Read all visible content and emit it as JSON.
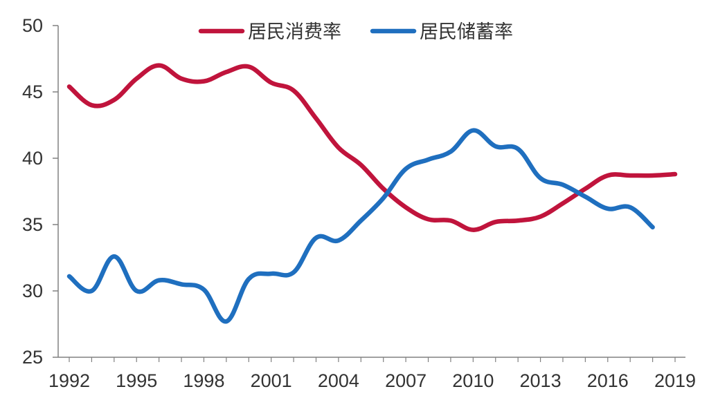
{
  "chart_data": {
    "type": "line",
    "title": "",
    "xlabel": "",
    "ylabel": "",
    "x_ticks": [
      "1992",
      "1995",
      "1998",
      "2001",
      "2004",
      "2007",
      "2010",
      "2013",
      "2016",
      "2019"
    ],
    "xlim": [
      1992,
      2019
    ],
    "ylim": [
      25,
      50
    ],
    "y_ticks": [
      25,
      30,
      35,
      40,
      45,
      50
    ],
    "grid": false,
    "legend_position": "top",
    "series": [
      {
        "name": "居民消费率",
        "color": "#c0143c",
        "x": [
          1992,
          1993,
          1994,
          1995,
          1996,
          1997,
          1998,
          1999,
          2000,
          2001,
          2002,
          2003,
          2004,
          2005,
          2006,
          2007,
          2008,
          2009,
          2010,
          2011,
          2012,
          2013,
          2014,
          2015,
          2016,
          2017,
          2018,
          2019
        ],
        "values": [
          45.4,
          44.0,
          44.4,
          46.0,
          47.0,
          46.0,
          45.8,
          46.5,
          46.9,
          45.7,
          45.1,
          43.0,
          40.8,
          39.5,
          37.7,
          36.3,
          35.4,
          35.3,
          34.6,
          35.2,
          35.3,
          35.6,
          36.6,
          37.7,
          38.7,
          38.7,
          38.7,
          38.8
        ]
      },
      {
        "name": "居民储蓄率",
        "color": "#1f6fbf",
        "x": [
          1992,
          1993,
          1994,
          1995,
          1996,
          1997,
          1998,
          1999,
          2000,
          2001,
          2002,
          2003,
          2004,
          2005,
          2006,
          2007,
          2008,
          2009,
          2010,
          2011,
          2012,
          2013,
          2014,
          2015,
          2016,
          2017,
          2018
        ],
        "values": [
          31.1,
          30.0,
          32.6,
          30.0,
          30.8,
          30.5,
          30.1,
          27.7,
          30.9,
          31.3,
          31.4,
          34.0,
          33.8,
          35.3,
          37.0,
          39.2,
          39.9,
          40.5,
          42.1,
          40.9,
          40.7,
          38.5,
          38.0,
          37.1,
          36.2,
          36.3,
          34.8
        ]
      }
    ]
  }
}
